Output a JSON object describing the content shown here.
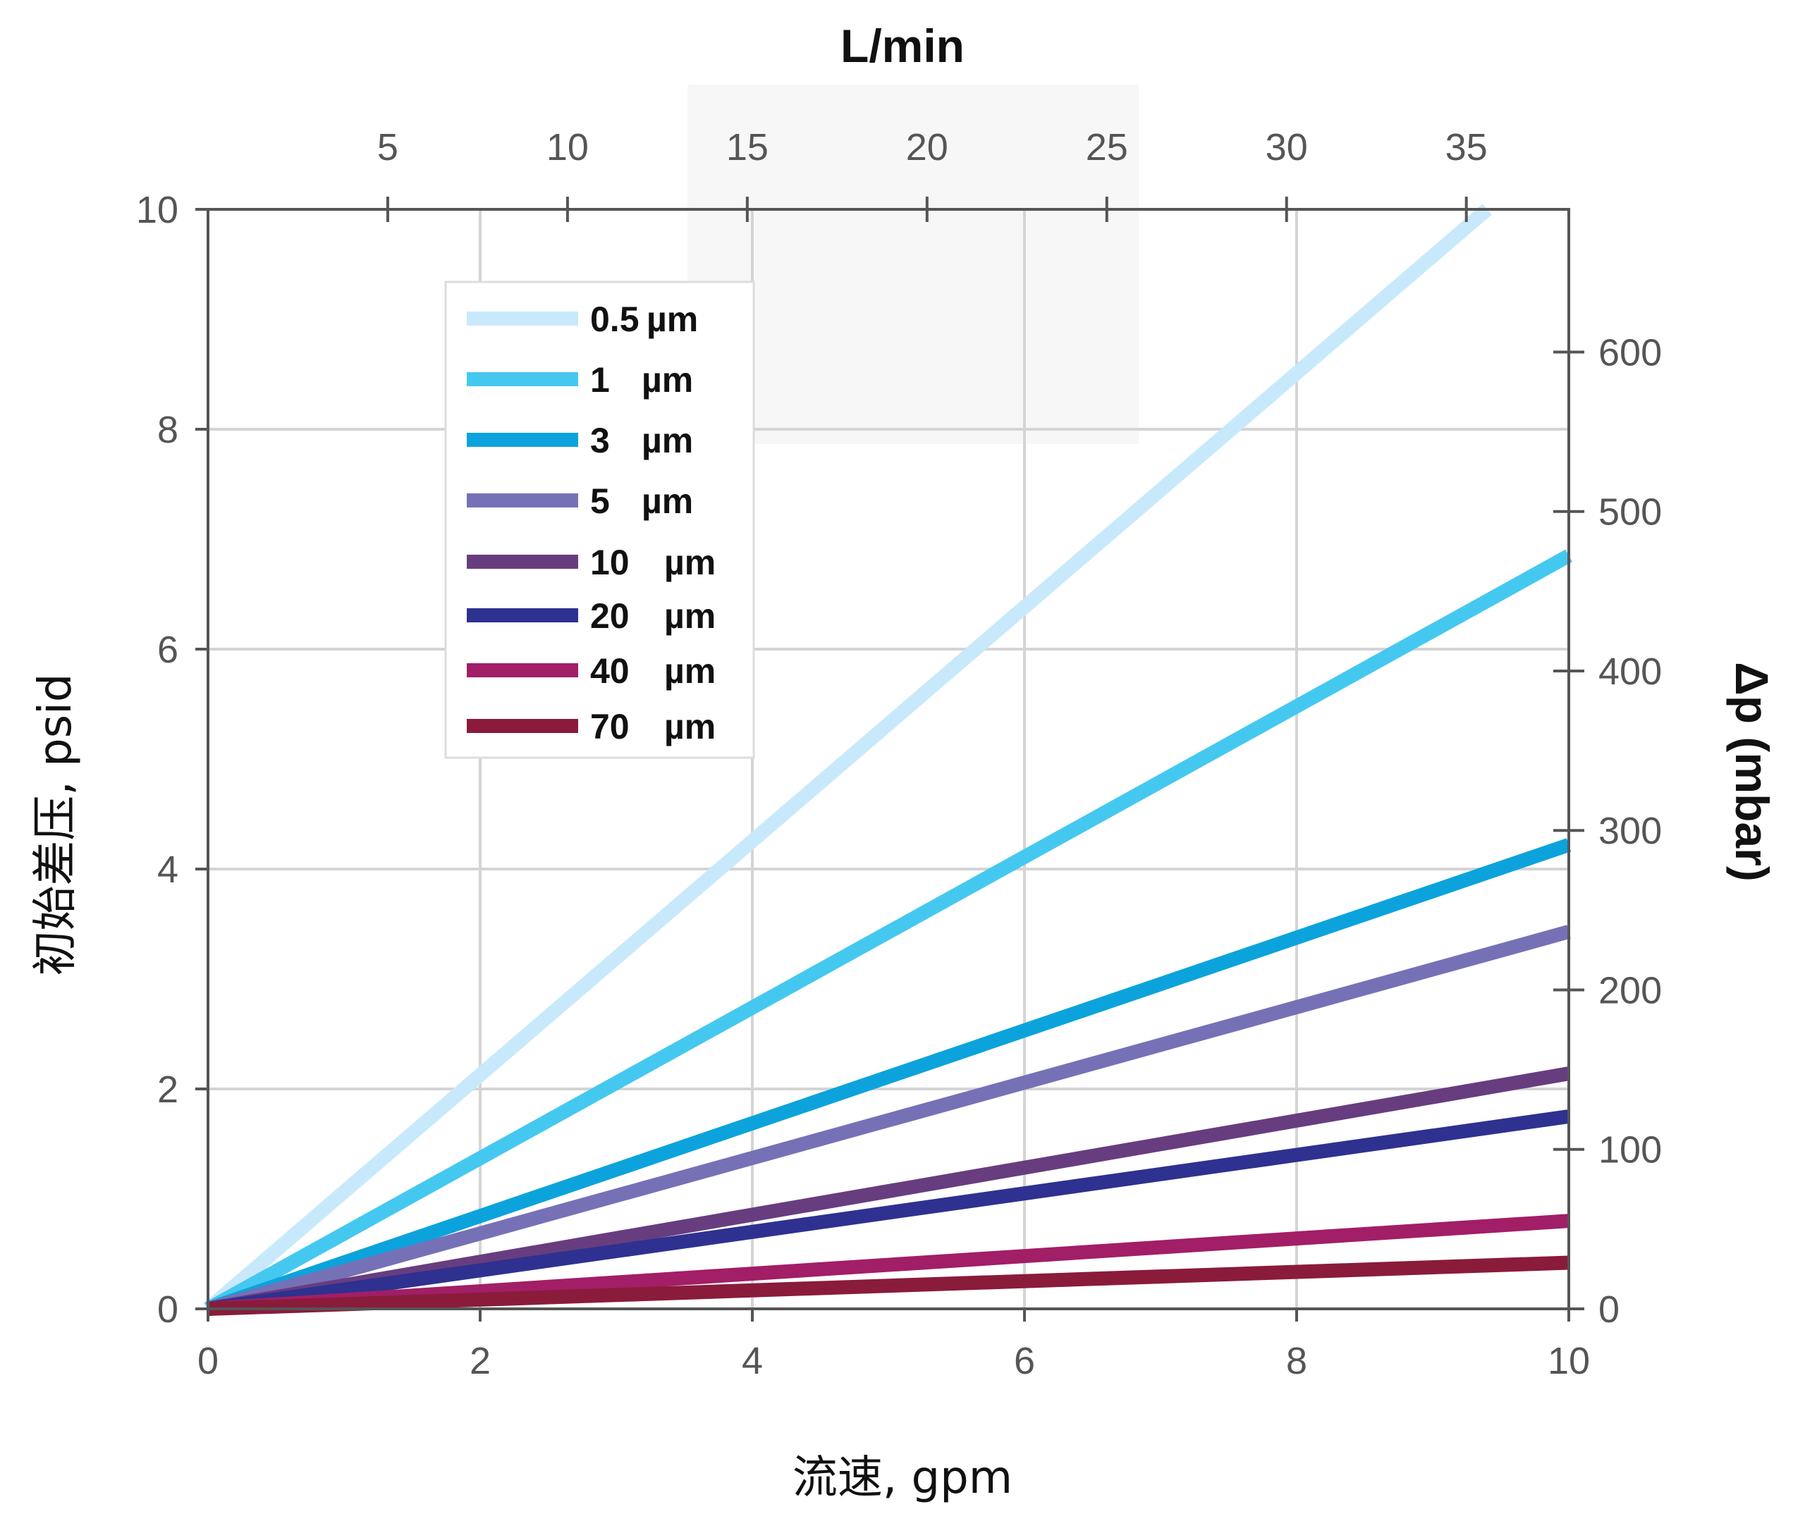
{
  "chart_data": {
    "type": "line",
    "xlabel": "流速, gpm",
    "ylabel": "初始差压, psid",
    "x2label": "L/min",
    "y2label": "Δp (mbar)",
    "xlim": [
      0,
      10
    ],
    "ylim": [
      0,
      10
    ],
    "x2lim": [
      0,
      37.85
    ],
    "y2lim": [
      0,
      689.5
    ],
    "x_ticks": [
      0,
      2,
      4,
      6,
      8,
      10
    ],
    "y_ticks": [
      0,
      2,
      4,
      6,
      8,
      10
    ],
    "x2_ticks": [
      5,
      10,
      15,
      20,
      25,
      30,
      35
    ],
    "y2_ticks": [
      0,
      100,
      200,
      300,
      400,
      500,
      600
    ],
    "grid": true,
    "legend_position": "top-left",
    "series": [
      {
        "name": "0.5 µm",
        "label_num": "0.5",
        "label_unit": "µm",
        "color": "#C8E9FB",
        "x": [
          0,
          9.4
        ],
        "y": [
          0,
          10
        ]
      },
      {
        "name": "1 µm",
        "label_num": "1",
        "label_unit": "µm",
        "color": "#45C8F0",
        "x": [
          0,
          10
        ],
        "y": [
          0,
          6.85
        ]
      },
      {
        "name": "3 µm",
        "label_num": "3",
        "label_unit": "µm",
        "color": "#0CA3DC",
        "x": [
          0,
          10
        ],
        "y": [
          0,
          4.22
        ]
      },
      {
        "name": "5 µm",
        "label_num": "5",
        "label_unit": "µm",
        "color": "#7671B6",
        "x": [
          0,
          10
        ],
        "y": [
          0,
          3.43
        ]
      },
      {
        "name": "10 µm",
        "label_num": "10",
        "label_unit": "µm",
        "color": "#683D80",
        "x": [
          0,
          10
        ],
        "y": [
          0,
          2.14
        ]
      },
      {
        "name": "20 µm",
        "label_num": "20",
        "label_unit": "µm",
        "color": "#2E3190",
        "x": [
          0,
          10
        ],
        "y": [
          0,
          1.75
        ]
      },
      {
        "name": "40 µm",
        "label_num": "40",
        "label_unit": "µm",
        "color": "#A21E66",
        "x": [
          0,
          10
        ],
        "y": [
          0,
          0.8
        ]
      },
      {
        "name": "70 µm",
        "label_num": "70",
        "label_unit": "µm",
        "color": "#8A1B3B",
        "x": [
          0,
          10
        ],
        "y": [
          0,
          0.42
        ]
      }
    ]
  }
}
